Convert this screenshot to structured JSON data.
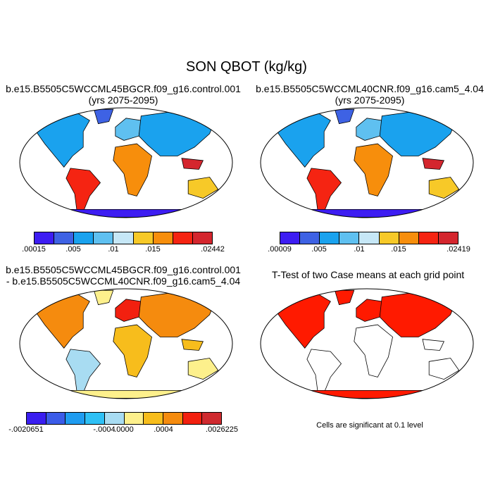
{
  "main_title": "SON QBOT (kg/kg)",
  "panels": [
    {
      "title_line1": "b.e15.B5505C5WCCML45BGCR.f09_g16.control.001",
      "title_line2": "(yrs 2075-2095)",
      "colorbar": {
        "colors": [
          "#3d1df2",
          "#3e62e4",
          "#1aa2ee",
          "#5fc0f0",
          "#c6e7f6",
          "#f7c928",
          "#f78e0c",
          "#f52412",
          "#d4262e"
        ],
        "labels": [
          ".00015",
          ".005",
          ".01",
          ".015",
          ".02442"
        ]
      }
    },
    {
      "title_line1": "b.e15.B5505C5WCCML40CNR.f09_g16.cam5_4.04",
      "title_line2": "(yrs 2075-2095)",
      "colorbar": {
        "colors": [
          "#3d1df2",
          "#3e62e4",
          "#1aa2ee",
          "#5fc0f0",
          "#c6e7f6",
          "#f7c928",
          "#f78e0c",
          "#f52412",
          "#d4262e"
        ],
        "labels": [
          ".00009",
          ".005",
          ".01",
          ".015",
          ".02419"
        ]
      }
    },
    {
      "title_line1": "b.e15.B5505C5WCCML45BGCR.f09_g16.control.001",
      "title_line2": "- b.e15.B5505C5WCCML40CNR.f09_g16.cam5_4.04",
      "colorbar": {
        "colors": [
          "#3a1ef0",
          "#3b5ce8",
          "#1f9cf0",
          "#2ec0f5",
          "#a8dcf2",
          "#fdf08c",
          "#f7bd1c",
          "#f58b0e",
          "#f2200f",
          "#cf2a2f"
        ],
        "labels": [
          "-.0020651",
          "-.0004",
          ".0000",
          ".0004",
          ".0026225"
        ]
      }
    },
    {
      "title_line1": "T-Test of two Case means at each grid point",
      "note": "Cells are significant at 0.1 level"
    }
  ]
}
